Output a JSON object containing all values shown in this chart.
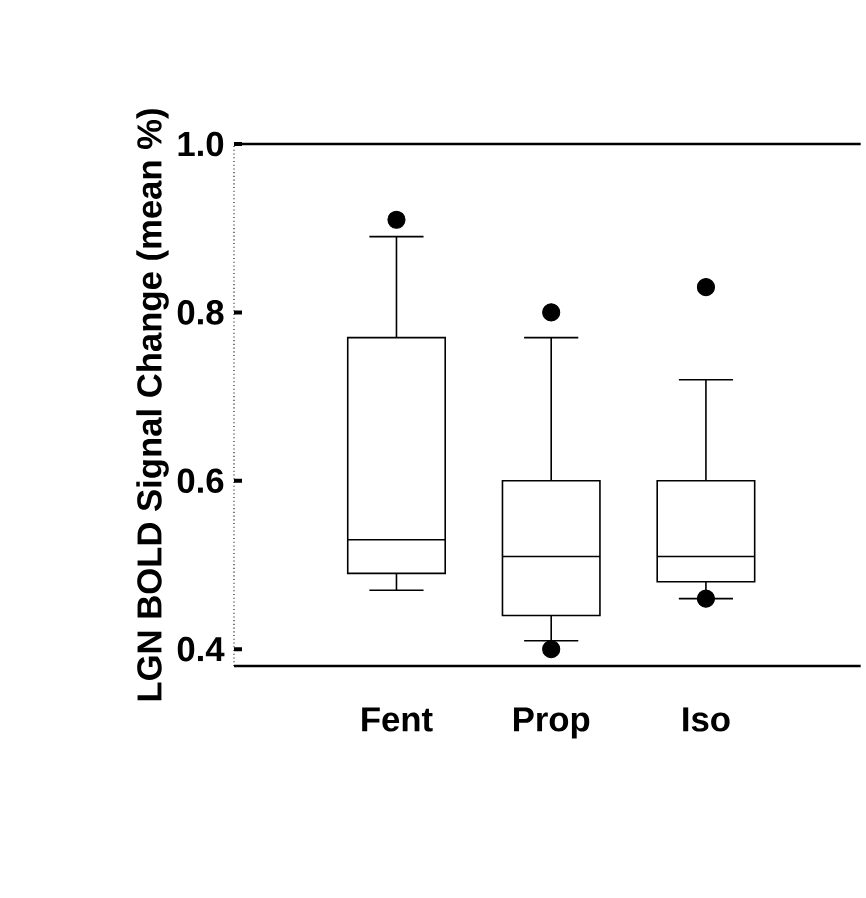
{
  "chart_data": {
    "type": "box",
    "ylabel": "LGN BOLD Signal Change (mean %)",
    "categories": [
      "Fent",
      "Prop",
      "Iso"
    ],
    "boxes": [
      {
        "low": 0.47,
        "q1": 0.49,
        "median": 0.53,
        "q3": 0.77,
        "high": 0.89,
        "outliers": [
          0.91
        ]
      },
      {
        "low": 0.41,
        "q1": 0.44,
        "median": 0.51,
        "q3": 0.6,
        "high": 0.77,
        "outliers": [
          0.8,
          0.4
        ]
      },
      {
        "low": 0.46,
        "q1": 0.48,
        "median": 0.51,
        "q3": 0.6,
        "high": 0.72,
        "outliers": [
          0.83,
          0.46
        ]
      }
    ],
    "ylim": [
      0.38,
      1.0
    ],
    "yticks": [
      0.4,
      0.6,
      0.8,
      {
        "value": 1.0,
        "label": "1.0"
      }
    ],
    "color": "#000000",
    "grid": false
  }
}
